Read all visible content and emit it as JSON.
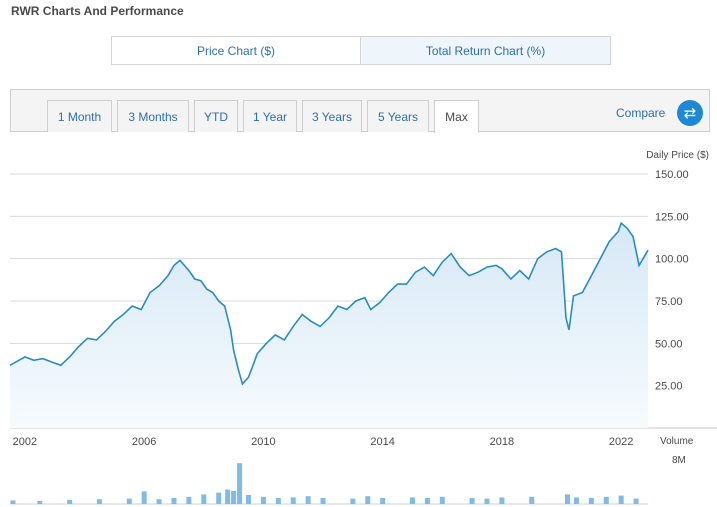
{
  "page": {
    "title": "RWR Charts And Performance"
  },
  "toggles": {
    "price_chart": "Price Chart ($)",
    "total_return_chart": "Total Return Chart (%)"
  },
  "ranges": [
    "1 Month",
    "3 Months",
    "YTD",
    "1 Year",
    "3 Years",
    "5 Years",
    "Max"
  ],
  "active_range": "Max",
  "compare": {
    "label": "Compare",
    "icon": "swap-arrows-icon"
  },
  "colors": {
    "line": "#2a8cbf",
    "area": "#e3eff9",
    "accent": "#1e88d6",
    "link": "#2f6fa8",
    "volume": "#7fbbe6"
  },
  "chart_data": {
    "type": "area",
    "ylabel": "Daily Price ($)",
    "ylim": [
      0,
      150
    ],
    "yticks": [
      "150.00",
      "125.00",
      "100.00",
      "75.00",
      "50.00",
      "25.00"
    ],
    "xticks": [
      "2002",
      "2006",
      "2010",
      "2014",
      "2018",
      "2022"
    ],
    "xlim": [
      2001.5,
      2022.9
    ],
    "series": [
      {
        "x": [
          2001.5,
          2001.8,
          2002.0,
          2002.3,
          2002.6,
          2002.9,
          2003.2,
          2003.5,
          2003.8,
          2004.1,
          2004.4,
          2004.7,
          2005.0,
          2005.3,
          2005.6,
          2005.9,
          2006.2,
          2006.5,
          2006.8,
          2007.0,
          2007.2,
          2007.5,
          2007.7,
          2007.9,
          2008.1,
          2008.3,
          2008.5,
          2008.7,
          2008.9,
          2009.0,
          2009.15,
          2009.3,
          2009.5,
          2009.8,
          2010.1,
          2010.4,
          2010.7,
          2011.0,
          2011.3,
          2011.6,
          2011.9,
          2012.2,
          2012.5,
          2012.8,
          2013.1,
          2013.4,
          2013.6,
          2013.9,
          2014.2,
          2014.5,
          2014.8,
          2015.1,
          2015.4,
          2015.7,
          2016.0,
          2016.3,
          2016.6,
          2016.9,
          2017.2,
          2017.5,
          2017.8,
          2018.0,
          2018.3,
          2018.6,
          2018.9,
          2019.2,
          2019.5,
          2019.8,
          2020.0,
          2020.15,
          2020.25,
          2020.4,
          2020.7,
          2021.0,
          2021.3,
          2021.6,
          2021.9,
          2022.0,
          2022.2,
          2022.4,
          2022.6,
          2022.8,
          2022.9
        ],
        "y": [
          37,
          40,
          42,
          40,
          41,
          39,
          37,
          42,
          48,
          53,
          52,
          57,
          63,
          67,
          72,
          70,
          80,
          84,
          90,
          96,
          99,
          93,
          88,
          87,
          82,
          80,
          75,
          72,
          58,
          46,
          35,
          26,
          30,
          44,
          50,
          55,
          52,
          60,
          67,
          63,
          60,
          65,
          72,
          70,
          75,
          77,
          70,
          74,
          80,
          85,
          85,
          92,
          95,
          90,
          98,
          103,
          95,
          90,
          92,
          95,
          96,
          94,
          88,
          93,
          88,
          100,
          104,
          106,
          104,
          65,
          58,
          78,
          80,
          90,
          100,
          110,
          116,
          121,
          118,
          113,
          96,
          102,
          105
        ]
      }
    ],
    "volume": {
      "label": "Volume",
      "max_label": "8M",
      "x": [
        2001.6,
        2002.5,
        2003.5,
        2004.5,
        2005.5,
        2006.0,
        2006.5,
        2007.0,
        2007.5,
        2008.0,
        2008.5,
        2008.8,
        2009.0,
        2009.2,
        2009.5,
        2010.0,
        2010.5,
        2011.0,
        2011.5,
        2012.0,
        2013.0,
        2013.5,
        2014.0,
        2015.0,
        2015.5,
        2016.0,
        2017.0,
        2017.5,
        2018.0,
        2019.0,
        2020.2,
        2020.5,
        2021.0,
        2021.5,
        2022.0,
        2022.5
      ],
      "y": [
        0.6,
        0.5,
        0.7,
        0.8,
        0.9,
        2.1,
        0.8,
        1.0,
        1.2,
        1.6,
        1.9,
        2.4,
        2.2,
        6.8,
        1.5,
        1.2,
        1.0,
        1.1,
        1.3,
        1.0,
        0.9,
        1.3,
        1.0,
        1.1,
        1.0,
        1.2,
        1.0,
        0.9,
        1.1,
        1.2,
        1.6,
        1.1,
        1.0,
        1.2,
        1.4,
        0.9
      ],
      "ymax": 8
    }
  }
}
